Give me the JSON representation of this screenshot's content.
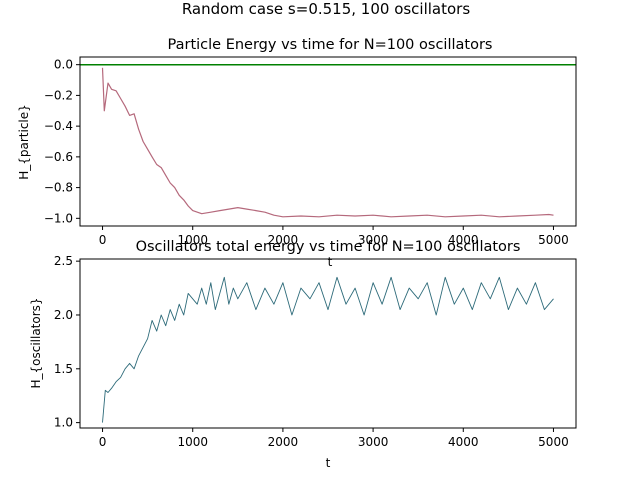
{
  "figure": {
    "suptitle": "Random case s=0.515, 100 oscillators"
  },
  "chart_data": [
    {
      "type": "line",
      "title": "Particle Energy vs time for N=100 oscillators",
      "xlabel": "t",
      "ylabel": "H_{particle}",
      "xlim": [
        -250,
        5250
      ],
      "ylim": [
        -1.05,
        0.05
      ],
      "xticks": [
        0,
        1000,
        2000,
        3000,
        4000,
        5000
      ],
      "yticks": [
        0.0,
        -0.2,
        -0.4,
        -0.6,
        -0.8,
        -1.0
      ],
      "ytick_labels": [
        "0.0",
        "−0.2",
        "−0.4",
        "−0.6",
        "−0.8",
        "−1.0"
      ],
      "grid": false,
      "series": [
        {
          "color": "#b5697c",
          "x": [
            0,
            20,
            60,
            100,
            150,
            200,
            250,
            300,
            350,
            400,
            450,
            500,
            550,
            600,
            650,
            700,
            750,
            800,
            850,
            900,
            950,
            1000,
            1100,
            1200,
            1300,
            1400,
            1500,
            1600,
            1700,
            1800,
            1900,
            2000,
            2200,
            2400,
            2600,
            2800,
            3000,
            3200,
            3400,
            3600,
            3800,
            4000,
            4200,
            4400,
            4600,
            4800,
            4950,
            5000
          ],
          "y": [
            -0.02,
            -0.3,
            -0.12,
            -0.16,
            -0.17,
            -0.22,
            -0.27,
            -0.33,
            -0.32,
            -0.42,
            -0.5,
            -0.55,
            -0.6,
            -0.65,
            -0.67,
            -0.72,
            -0.77,
            -0.8,
            -0.85,
            -0.88,
            -0.92,
            -0.95,
            -0.97,
            -0.96,
            -0.95,
            -0.94,
            -0.93,
            -0.94,
            -0.95,
            -0.96,
            -0.98,
            -0.99,
            -0.985,
            -0.99,
            -0.98,
            -0.985,
            -0.98,
            -0.99,
            -0.985,
            -0.98,
            -0.99,
            -0.985,
            -0.98,
            -0.99,
            -0.985,
            -0.98,
            -0.975,
            -0.98
          ]
        },
        {
          "color": "#008000",
          "x": [
            -250,
            5250
          ],
          "y": [
            0.0,
            0.0
          ]
        }
      ]
    },
    {
      "type": "line",
      "title": "Oscillators total energy vs time for N=100 oscillators",
      "xlabel": "t",
      "ylabel": "H_{oscillators}",
      "xlim": [
        -250,
        5250
      ],
      "ylim": [
        0.95,
        2.52
      ],
      "xticks": [
        0,
        1000,
        2000,
        3000,
        4000,
        5000
      ],
      "yticks": [
        1.0,
        1.5,
        2.0,
        2.5
      ],
      "ytick_labels": [
        "1.0",
        "1.5",
        "2.0",
        "2.5"
      ],
      "grid": false,
      "series": [
        {
          "color": "#2e6b7a",
          "x": [
            0,
            30,
            60,
            100,
            150,
            200,
            250,
            300,
            350,
            400,
            450,
            500,
            550,
            600,
            650,
            700,
            750,
            800,
            850,
            900,
            950,
            1000,
            1050,
            1100,
            1150,
            1200,
            1250,
            1300,
            1350,
            1400,
            1450,
            1500,
            1600,
            1700,
            1800,
            1900,
            2000,
            2100,
            2200,
            2300,
            2400,
            2500,
            2600,
            2700,
            2800,
            2900,
            3000,
            3100,
            3200,
            3300,
            3400,
            3500,
            3600,
            3700,
            3800,
            3900,
            4000,
            4100,
            4200,
            4300,
            4400,
            4500,
            4600,
            4700,
            4800,
            4900,
            5000
          ],
          "y": [
            1.0,
            1.3,
            1.28,
            1.32,
            1.38,
            1.42,
            1.5,
            1.55,
            1.5,
            1.62,
            1.7,
            1.78,
            1.95,
            1.85,
            2.0,
            1.9,
            2.05,
            1.95,
            2.1,
            2.0,
            2.2,
            2.15,
            2.1,
            2.25,
            2.1,
            2.3,
            2.05,
            2.2,
            2.35,
            2.1,
            2.25,
            2.15,
            2.3,
            2.05,
            2.25,
            2.1,
            2.3,
            2.0,
            2.25,
            2.15,
            2.3,
            2.05,
            2.35,
            2.1,
            2.25,
            2.0,
            2.3,
            2.1,
            2.35,
            2.05,
            2.25,
            2.15,
            2.3,
            2.0,
            2.35,
            2.1,
            2.25,
            2.05,
            2.3,
            2.15,
            2.35,
            2.05,
            2.25,
            2.1,
            2.3,
            2.05,
            2.15
          ]
        }
      ]
    }
  ]
}
